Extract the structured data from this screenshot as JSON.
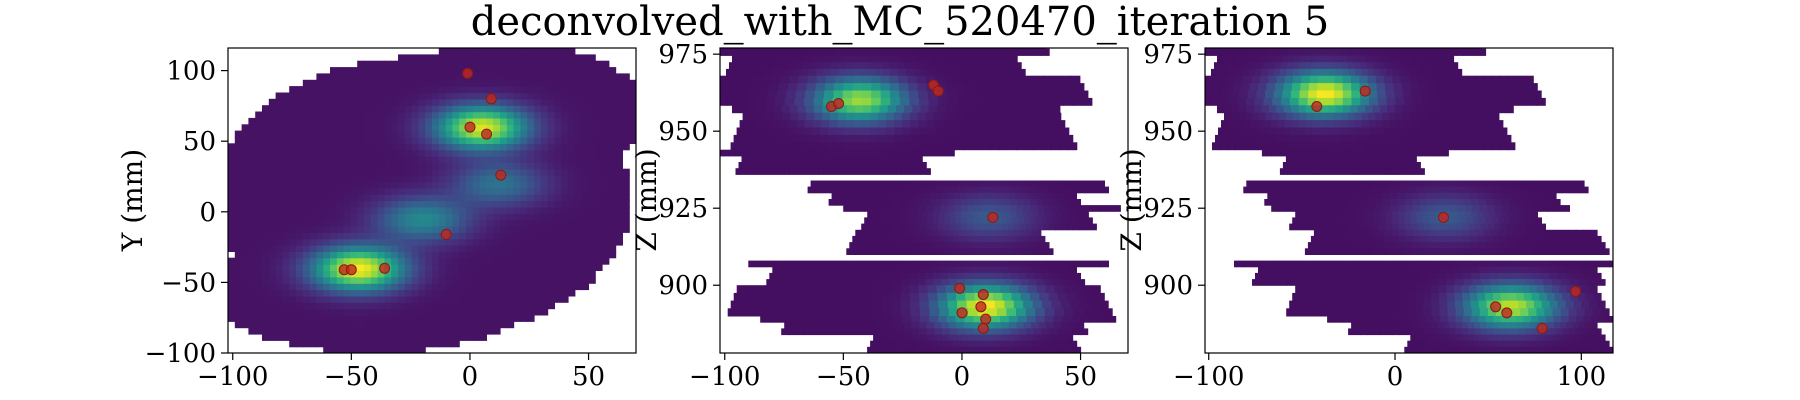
{
  "title": "deconvolved_with_MC_520470_iteration 5",
  "chart_data": [
    {
      "type": "heatmap",
      "name": "xy-view",
      "xlabel": "",
      "ylabel": "Y (mm)",
      "xlim": [
        -102,
        70
      ],
      "ylim": [
        -100,
        116
      ],
      "xticks": [
        -100,
        -50,
        0,
        50
      ],
      "yticks": [
        -100,
        -50,
        0,
        50,
        100
      ],
      "xtick_labels": [
        "−100",
        "−50",
        "0",
        "50"
      ],
      "ytick_labels": [
        "−100",
        "−50",
        "0",
        "50",
        "100"
      ],
      "hotspots": [
        {
          "x": -47,
          "y": -40,
          "intensity": 1.0
        },
        {
          "x": 5,
          "y": 60,
          "intensity": 0.95
        },
        {
          "x": -20,
          "y": -5,
          "intensity": 0.45
        },
        {
          "x": 12,
          "y": 20,
          "intensity": 0.35
        }
      ],
      "points": [
        {
          "x": -1,
          "y": 98
        },
        {
          "x": 9,
          "y": 80
        },
        {
          "x": 0,
          "y": 60
        },
        {
          "x": 7,
          "y": 55
        },
        {
          "x": 13,
          "y": 26
        },
        {
          "x": -10,
          "y": -16
        },
        {
          "x": -36,
          "y": -40
        },
        {
          "x": -53,
          "y": -41
        },
        {
          "x": -50,
          "y": -41
        }
      ]
    },
    {
      "type": "heatmap",
      "name": "xz-view",
      "xlabel": "",
      "ylabel": "Z (mm)",
      "xlim": [
        -102,
        70
      ],
      "ylim": [
        878,
        977
      ],
      "xticks": [
        -100,
        -50,
        0,
        50
      ],
      "yticks": [
        900,
        925,
        950,
        975
      ],
      "xtick_labels": [
        "−100",
        "−50",
        "0",
        "50"
      ],
      "ytick_labels": [
        "900",
        "925",
        "950",
        "975"
      ],
      "hotspots": [
        {
          "x": -45,
          "y": 960,
          "intensity": 0.85
        },
        {
          "x": 8,
          "y": 893,
          "intensity": 1.0
        },
        {
          "x": 10,
          "y": 922,
          "intensity": 0.25
        }
      ],
      "points": [
        {
          "x": -55,
          "y": 958
        },
        {
          "x": -52,
          "y": 959
        },
        {
          "x": -12,
          "y": 965
        },
        {
          "x": -10,
          "y": 963
        },
        {
          "x": 13,
          "y": 922
        },
        {
          "x": -1,
          "y": 899
        },
        {
          "x": 8,
          "y": 893
        },
        {
          "x": 9,
          "y": 897
        },
        {
          "x": 0,
          "y": 891
        },
        {
          "x": 10,
          "y": 889
        },
        {
          "x": 9,
          "y": 886
        }
      ]
    },
    {
      "type": "heatmap",
      "name": "yz-view",
      "xlabel": "",
      "ylabel": "Z (mm)",
      "xlim": [
        -102,
        117
      ],
      "ylim": [
        878,
        977
      ],
      "xticks": [
        -100,
        0,
        100
      ],
      "yticks": [
        900,
        925,
        950,
        975
      ],
      "xtick_labels": [
        "−100",
        "0",
        "100"
      ],
      "ytick_labels": [
        "900",
        "925",
        "950",
        "975"
      ],
      "hotspots": [
        {
          "x": -40,
          "y": 962,
          "intensity": 1.0
        },
        {
          "x": 60,
          "y": 893,
          "intensity": 0.9
        },
        {
          "x": 25,
          "y": 922,
          "intensity": 0.25
        }
      ],
      "points": [
        {
          "x": -42,
          "y": 958
        },
        {
          "x": -16,
          "y": 963
        },
        {
          "x": 26,
          "y": 922
        },
        {
          "x": 54,
          "y": 893
        },
        {
          "x": 60,
          "y": 891
        },
        {
          "x": 79,
          "y": 886
        },
        {
          "x": 97,
          "y": 898
        }
      ]
    }
  ]
}
